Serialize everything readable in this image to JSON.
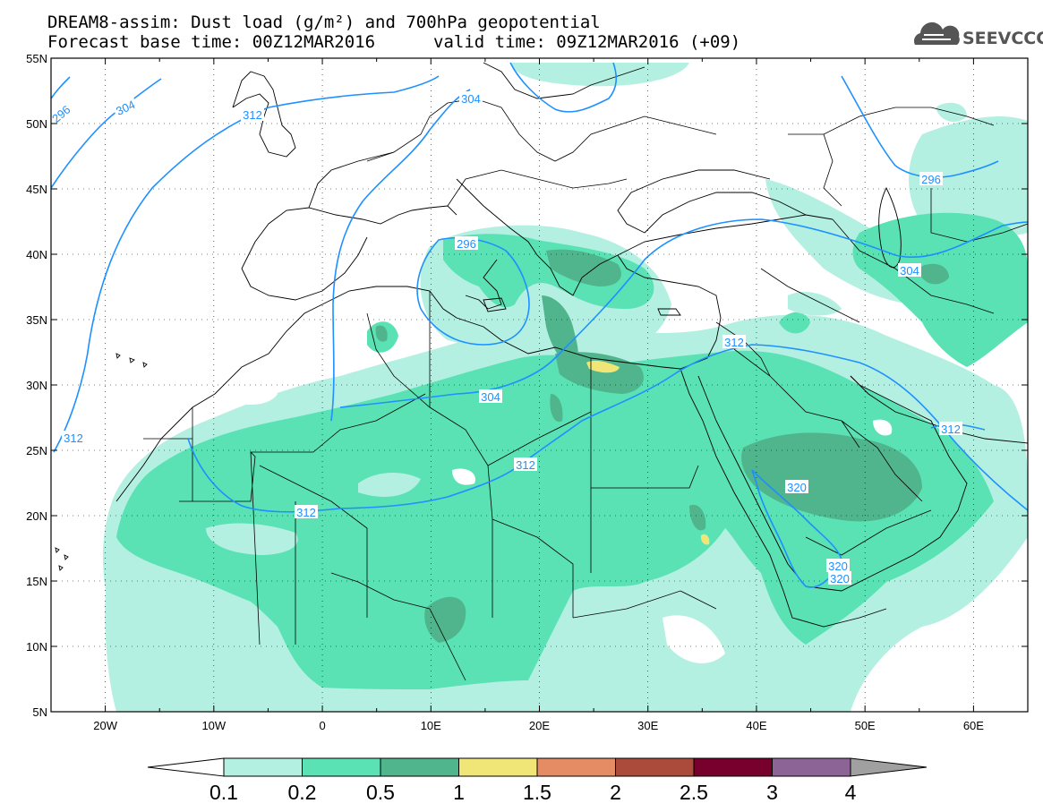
{
  "title": {
    "line1": "DREAM8-assim: Dust load (g/m²) and 700hPa geopotential",
    "line2_base": "Forecast base time: 00Z12MAR2016",
    "line2_valid": "valid time: 09Z12MAR2016 (+09)"
  },
  "logo": {
    "text": "SEEVCCC",
    "icon": "cloud-logo-icon"
  },
  "map": {
    "lon_range": [
      -25,
      65
    ],
    "lat_range": [
      5,
      55
    ],
    "lat_labels": [
      "55N",
      "50N",
      "45N",
      "40N",
      "35N",
      "30N",
      "25N",
      "20N",
      "15N",
      "10N",
      "5N"
    ],
    "lon_labels": [
      "20W",
      "10W",
      "0",
      "10E",
      "20E",
      "30E",
      "40E",
      "50E",
      "60E"
    ]
  },
  "contours": {
    "color": "#1e90ff",
    "labels": [
      {
        "id": "c296a",
        "text": "296"
      },
      {
        "id": "c304a",
        "text": "304"
      },
      {
        "id": "c312a",
        "text": "312"
      },
      {
        "id": "c304b",
        "text": "304"
      },
      {
        "id": "c296b",
        "text": "296"
      },
      {
        "id": "c304c",
        "text": "304"
      },
      {
        "id": "c312b",
        "text": "312"
      },
      {
        "id": "c312c",
        "text": "312"
      },
      {
        "id": "c312d",
        "text": "312"
      },
      {
        "id": "c312e",
        "text": "312"
      },
      {
        "id": "c296c",
        "text": "296"
      },
      {
        "id": "c304d",
        "text": "304"
      },
      {
        "id": "c312f",
        "text": "312"
      },
      {
        "id": "c320a",
        "text": "320"
      },
      {
        "id": "c320b",
        "text": "320"
      },
      {
        "id": "c320c",
        "text": "320"
      }
    ]
  },
  "colorbar": {
    "colors": [
      "#ffffff",
      "#b4f0e1",
      "#5ae1b4",
      "#50b48c",
      "#f0e678",
      "#e68c64",
      "#aa4b3c",
      "#78002d",
      "#8c6496",
      "#a0a0a0"
    ],
    "labels": [
      "0.1",
      "0.2",
      "0.5",
      "1",
      "1.5",
      "2",
      "2.5",
      "3",
      "4"
    ]
  }
}
